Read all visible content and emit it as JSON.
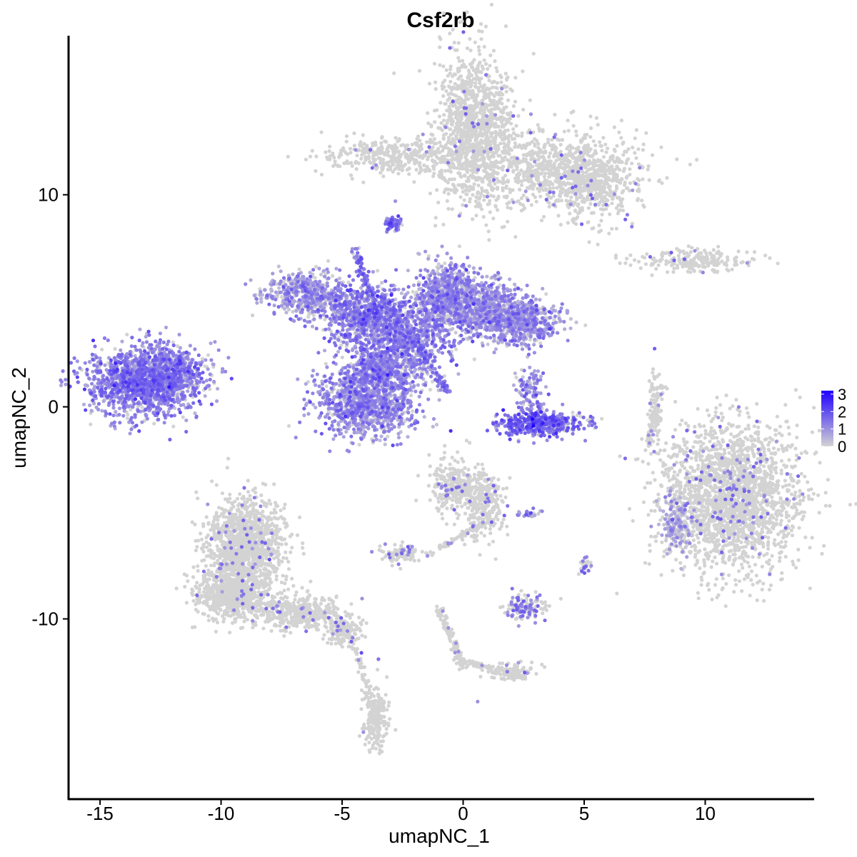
{
  "chart_data": {
    "type": "scatter",
    "title": "Csf2rb",
    "xlabel": "umapNC_1",
    "ylabel": "umapNC_2",
    "xlim": [
      -16.3,
      14.5
    ],
    "ylim": [
      -18.5,
      17.5
    ],
    "x_ticks": [
      -15,
      -10,
      -5,
      0,
      5,
      10
    ],
    "y_ticks": [
      -10,
      0,
      10
    ],
    "x_tick_labels": [
      "-15",
      "-10",
      "-5",
      "0",
      "5",
      "10"
    ],
    "y_tick_labels": [
      "-10",
      "0",
      "10"
    ],
    "grid": false,
    "color_scale": {
      "low_color": "#d3d3d3",
      "high_color": "#1f00ff",
      "min": 0,
      "max": 3.2,
      "breaks": [
        0,
        1,
        2,
        3
      ],
      "break_labels": [
        "0",
        "1",
        "2",
        "3"
      ],
      "legend_position": "right"
    },
    "clusters": [
      {
        "cx": 0.5,
        "cy": 13.2,
        "sx": 0.8,
        "sy": 1.8,
        "n": 1200,
        "expr": 0.03
      },
      {
        "cx": -2.8,
        "cy": 11.8,
        "sx": 1.5,
        "sy": 0.4,
        "n": 380,
        "expr": 0.03
      },
      {
        "cx": 3.8,
        "cy": 11.2,
        "sx": 1.8,
        "sy": 0.9,
        "n": 800,
        "expr": 0.03
      },
      {
        "cx": 5.4,
        "cy": 10.4,
        "sx": 0.8,
        "sy": 0.8,
        "n": 350,
        "expr": 0.03
      },
      {
        "cx": 9.5,
        "cy": 6.9,
        "sx": 1.2,
        "sy": 0.25,
        "n": 220,
        "expr": 0.03
      },
      {
        "cx": -2.9,
        "cy": 8.6,
        "sx": 0.18,
        "sy": 0.18,
        "n": 60,
        "expr": 1.3
      },
      {
        "cx": -13.2,
        "cy": 1.2,
        "sx": 1.1,
        "sy": 0.8,
        "n": 1500,
        "expr": 1.2
      },
      {
        "cx": -11.8,
        "cy": 1.7,
        "sx": 0.6,
        "sy": 0.5,
        "n": 300,
        "expr": 1.2
      },
      {
        "cx": -6.4,
        "cy": 5.3,
        "sx": 0.9,
        "sy": 0.5,
        "n": 500,
        "expr": 0.9
      },
      {
        "cx": -4.0,
        "cy": 4.2,
        "sx": 0.9,
        "sy": 0.8,
        "n": 700,
        "expr": 1.2
      },
      {
        "cx": -2.5,
        "cy": 3.0,
        "sx": 0.9,
        "sy": 1.0,
        "n": 700,
        "expr": 1.1
      },
      {
        "cx": -0.8,
        "cy": 5.2,
        "sx": 0.6,
        "sy": 0.8,
        "n": 600,
        "expr": 1.0
      },
      {
        "cx": 0.8,
        "cy": 4.6,
        "sx": 1.0,
        "sy": 0.7,
        "n": 700,
        "expr": 0.9
      },
      {
        "cx": 2.5,
        "cy": 4.0,
        "sx": 0.8,
        "sy": 0.5,
        "n": 500,
        "expr": 0.9
      },
      {
        "cx": -4.0,
        "cy": 0.2,
        "sx": 1.0,
        "sy": 0.8,
        "n": 1100,
        "expr": 1.0
      },
      {
        "cx": -3.5,
        "cy": 1.8,
        "sx": 0.6,
        "sy": 0.6,
        "n": 300,
        "expr": 1.1
      },
      {
        "cx": 3.2,
        "cy": -0.8,
        "sx": 0.9,
        "sy": 0.3,
        "n": 450,
        "expr": 1.5
      },
      {
        "cx": 2.8,
        "cy": 0.8,
        "sx": 0.3,
        "sy": 0.6,
        "n": 120,
        "expr": 1.0
      },
      {
        "cx": 7.9,
        "cy": -0.4,
        "sx": 0.12,
        "sy": 1.0,
        "n": 90,
        "expr": 0.03
      },
      {
        "cx": 11.0,
        "cy": -4.3,
        "sx": 1.4,
        "sy": 1.7,
        "n": 2200,
        "expr": 0.06
      },
      {
        "cx": 8.8,
        "cy": -5.5,
        "sx": 0.3,
        "sy": 0.7,
        "n": 150,
        "expr": 0.7
      },
      {
        "cx": -9.0,
        "cy": -6.5,
        "sx": 0.8,
        "sy": 1.1,
        "n": 1200,
        "expr": 0.03
      },
      {
        "cx": -9.5,
        "cy": -8.8,
        "sx": 0.8,
        "sy": 0.6,
        "n": 700,
        "expr": 0.03
      },
      {
        "cx": -6.8,
        "cy": -9.7,
        "sx": 0.9,
        "sy": 0.4,
        "n": 400,
        "expr": 0.03
      },
      {
        "cx": -5.0,
        "cy": -10.6,
        "sx": 0.4,
        "sy": 0.4,
        "n": 150,
        "expr": 0.03
      },
      {
        "cx": -3.6,
        "cy": -14.7,
        "sx": 0.25,
        "sy": 0.7,
        "n": 200,
        "expr": 0.03
      },
      {
        "cx": -0.3,
        "cy": -3.8,
        "sx": 0.5,
        "sy": 0.6,
        "n": 350,
        "expr": 0.05
      },
      {
        "cx": 0.9,
        "cy": -4.6,
        "sx": 0.4,
        "sy": 0.9,
        "n": 250,
        "expr": 0.05
      },
      {
        "cx": -2.6,
        "cy": -6.9,
        "sx": 0.4,
        "sy": 0.25,
        "n": 90,
        "expr": 0.2
      },
      {
        "cx": 2.5,
        "cy": -9.5,
        "sx": 0.5,
        "sy": 0.3,
        "n": 130,
        "expr": 0.4
      },
      {
        "cx": 2.7,
        "cy": -5.0,
        "sx": 0.3,
        "sy": 0.1,
        "n": 25,
        "expr": 0.8
      },
      {
        "cx": 5.0,
        "cy": -7.5,
        "sx": 0.15,
        "sy": 0.2,
        "n": 30,
        "expr": 0.4
      },
      {
        "cx": 2.0,
        "cy": -12.5,
        "sx": 0.5,
        "sy": 0.2,
        "n": 80,
        "expr": 0.03
      }
    ],
    "strands": [
      {
        "x1": -3.3,
        "y1": 5.2,
        "x2": -0.6,
        "y2": 0.6,
        "n": 150,
        "expr": 1.4
      },
      {
        "x1": -4.5,
        "y1": 7.5,
        "x2": -3.6,
        "y2": 4.5,
        "n": 90,
        "expr": 1.4
      },
      {
        "x1": -1.0,
        "y1": -9.5,
        "x2": 0.0,
        "y2": -12.3,
        "n": 120,
        "expr": 0.03
      },
      {
        "x1": 0.0,
        "y1": -12.0,
        "x2": 2.5,
        "y2": -12.7,
        "n": 80,
        "expr": 0.03
      },
      {
        "x1": -4.6,
        "y1": -10.8,
        "x2": -3.8,
        "y2": -14.0,
        "n": 60,
        "expr": 0.03
      },
      {
        "x1": 8.3,
        "y1": 1.2,
        "x2": 7.6,
        "y2": -2.0,
        "n": 60,
        "expr": 0.03
      },
      {
        "x1": 0.8,
        "y1": -5.5,
        "x2": -1.5,
        "y2": -7.0,
        "n": 70,
        "expr": 0.05
      }
    ],
    "highlights": [
      {
        "x": 1.6,
        "y": 15.0,
        "v": 1.0
      },
      {
        "x": 2.8,
        "y": 13.8,
        "v": 1.0
      },
      {
        "x": -10.5,
        "y": 1.0,
        "v": 1.3
      },
      {
        "x": -8.0,
        "y": -7.2,
        "v": 2.0
      },
      {
        "x": -4.2,
        "y": -11.6,
        "v": 2.0
      },
      {
        "x": -3.5,
        "y": -11.9,
        "v": 1.5
      },
      {
        "x": 2.9,
        "y": -0.9,
        "v": 3.2
      },
      {
        "x": 9.0,
        "y": -4.8,
        "v": 1.0
      },
      {
        "x": 10.8,
        "y": -3.1,
        "v": 1.0
      },
      {
        "x": 11.7,
        "y": -6.2,
        "v": 1.0
      },
      {
        "x": -7.6,
        "y": -9.2,
        "v": 1.0
      },
      {
        "x": 0.6,
        "y": -13.9,
        "v": 1.0
      },
      {
        "x": -2.8,
        "y": 9.7,
        "v": 1.0
      },
      {
        "x": -3.6,
        "y": 11.4,
        "v": 1.0
      }
    ]
  }
}
